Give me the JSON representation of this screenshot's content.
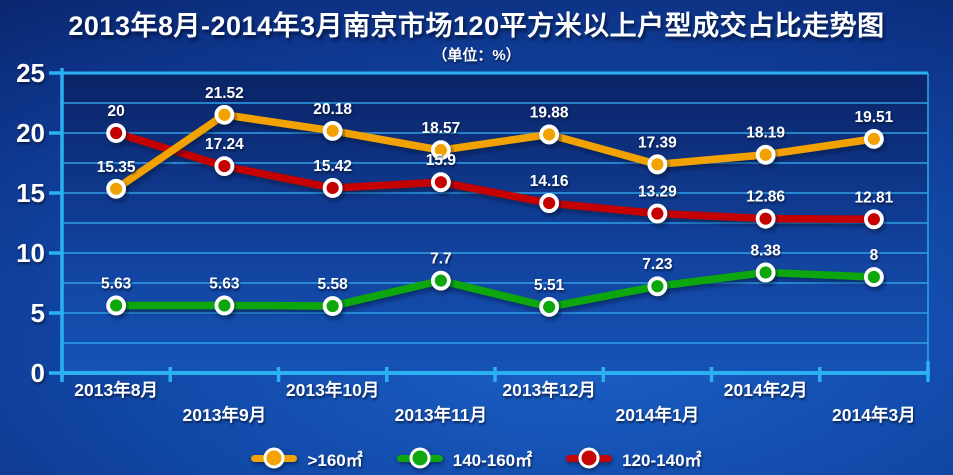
{
  "header": {
    "title": "2013年8月-2014年3月南京市场120平方米以上户型成交占比走势图",
    "subtitle": "（单位：%）"
  },
  "chart_data": {
    "type": "line",
    "title": "2013年8月-2014年3月南京市场120平方米以上户型成交占比走势图",
    "unit": "%",
    "categories": [
      "2013年8月",
      "2013年9月",
      "2013年10月",
      "2013年11月",
      "2013年12月",
      "2014年1月",
      "2014年2月",
      "2014年3月"
    ],
    "series": [
      {
        "name": ">160㎡",
        "color": "#F2A202",
        "values": [
          15.35,
          21.52,
          20.18,
          18.57,
          19.88,
          17.39,
          18.19,
          19.51
        ]
      },
      {
        "name": "140-160㎡",
        "color": "#0FA60F",
        "values": [
          5.63,
          5.63,
          5.58,
          7.7,
          5.51,
          7.23,
          8.38,
          8
        ]
      },
      {
        "name": "120-140㎡",
        "color": "#C40606",
        "values": [
          20,
          17.24,
          15.42,
          15.9,
          14.16,
          13.29,
          12.86,
          12.81
        ]
      }
    ],
    "ylim": [
      0,
      25
    ],
    "y_ticks": [
      0,
      5,
      10,
      15,
      20,
      25
    ],
    "grid_step": 2.5,
    "grid": true,
    "legend_position": "bottom"
  },
  "colors": {
    "axis": "#2BB0F2",
    "grid": "#2FA0E6",
    "text": "#FFFFFF",
    "plot_top": "#0A2366",
    "plot_mid": "#11409A",
    "plot_bottom": "#1553B6"
  }
}
